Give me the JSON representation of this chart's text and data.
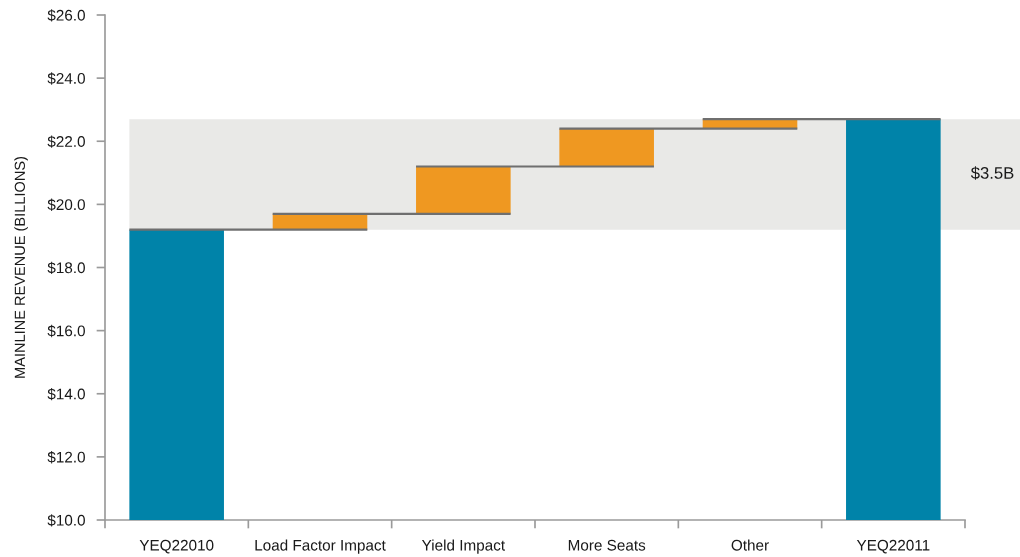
{
  "chart_data": {
    "type": "bar",
    "ylabel": "MAINLINE REVENUE (BILLIONS)",
    "categories": [
      "YEQ22010",
      "Load Factor Impact",
      "Yield Impact",
      "More Seats",
      "Other",
      "YEQ22011"
    ],
    "values": [
      19.2,
      0.5,
      1.5,
      1.2,
      0.3,
      22.7
    ],
    "base": [
      null,
      19.2,
      19.7,
      21.2,
      22.4,
      null
    ],
    "colors": [
      "#0083a9",
      "#ef9821",
      "#ef9821",
      "#ef9821",
      "#ef9821",
      "#0083a9"
    ],
    "ylim": [
      10,
      26
    ],
    "yticks": [
      {
        "value": 10,
        "label": "$10.0"
      },
      {
        "value": 12,
        "label": "$12.0"
      },
      {
        "value": 14,
        "label": "$14.0"
      },
      {
        "value": 16,
        "label": "$16.0"
      },
      {
        "value": 18,
        "label": "$18.0"
      },
      {
        "value": 20,
        "label": "$20.0"
      },
      {
        "value": 22,
        "label": "$22.0"
      },
      {
        "value": 24,
        "label": "$24.0"
      },
      {
        "value": 26,
        "label": "$26.0"
      }
    ],
    "bands": [
      {
        "axis": "y",
        "from": 19.2,
        "to": 22.7,
        "label": "$3.5B",
        "color": "#e9e9e7"
      }
    ]
  }
}
